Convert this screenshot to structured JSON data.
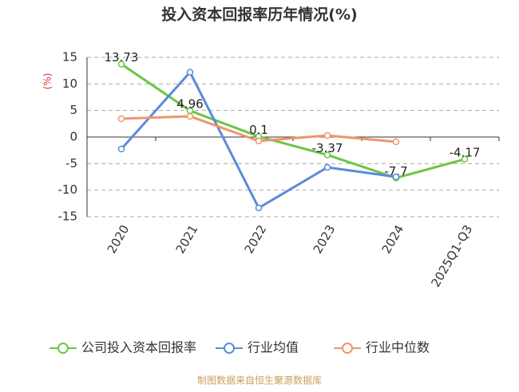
{
  "chart_data": {
    "type": "line",
    "title": "投入资本回报率历年情况(%)",
    "y_label": "(%)",
    "source": "制图数据来自恒生聚源数据库",
    "categories": [
      "2020",
      "2021",
      "2022",
      "2023",
      "2024",
      "2025Q1-Q3"
    ],
    "series": [
      {
        "name": "公司投入资本回报率",
        "color": "#6cc644",
        "values": [
          13.73,
          4.96,
          0.1,
          -3.37,
          -7.7,
          -4.17
        ],
        "show_labels": true
      },
      {
        "name": "行业均值",
        "color": "#5b8bd9",
        "values": [
          -2.25,
          12.2,
          -13.35,
          -5.7,
          -7.5,
          null
        ]
      },
      {
        "name": "行业中位数",
        "color": "#f0956a",
        "values": [
          3.45,
          3.9,
          -0.75,
          0.3,
          -0.9,
          null
        ]
      }
    ],
    "ylim": [
      -15,
      15
    ],
    "yticks": [
      -15,
      -10,
      -5,
      0,
      5,
      10,
      15
    ],
    "grid": true
  }
}
